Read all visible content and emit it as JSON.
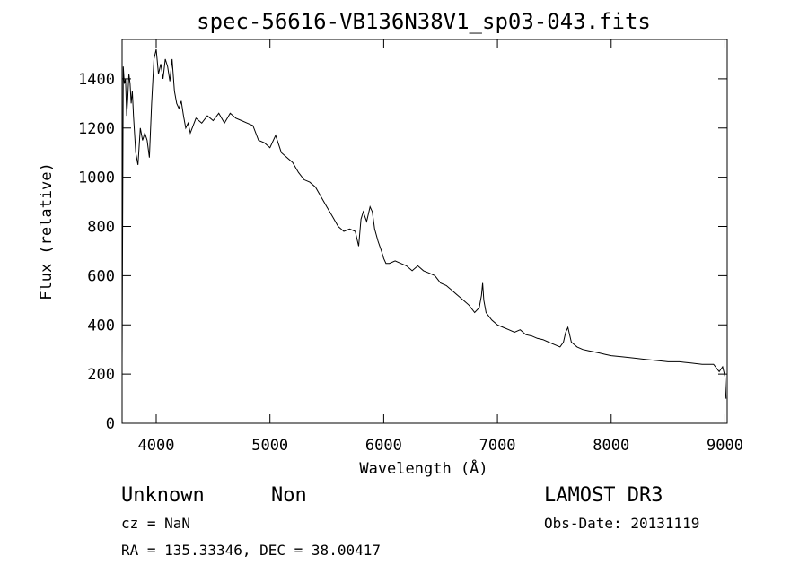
{
  "chart_data": {
    "type": "line",
    "title": "spec-56616-VB136N38V1_sp03-043.fits",
    "xlabel": "Wavelength (Å)",
    "ylabel": "Flux (relative)",
    "xlim": [
      3700,
      9020
    ],
    "ylim": [
      0,
      1560
    ],
    "xticks": [
      4000,
      5000,
      6000,
      7000,
      8000,
      9000
    ],
    "yticks": [
      0,
      200,
      400,
      600,
      800,
      1000,
      1200,
      1400
    ],
    "grid": false,
    "series": [
      {
        "x": [
          3700,
          3710,
          3720,
          3730,
          3740,
          3750,
          3760,
          3770,
          3780,
          3790,
          3800,
          3820,
          3840,
          3860,
          3880,
          3900,
          3920,
          3940,
          3960,
          3980,
          4000,
          4020,
          4040,
          4060,
          4080,
          4100,
          4120,
          4140,
          4160,
          4180,
          4200,
          4220,
          4240,
          4260,
          4280,
          4300,
          4350,
          4400,
          4450,
          4500,
          4550,
          4600,
          4650,
          4700,
          4750,
          4800,
          4850,
          4900,
          4950,
          5000,
          5050,
          5100,
          5150,
          5200,
          5250,
          5300,
          5350,
          5400,
          5450,
          5500,
          5550,
          5600,
          5650,
          5700,
          5750,
          5780,
          5800,
          5820,
          5850,
          5880,
          5900,
          5920,
          5950,
          5980,
          6000,
          6020,
          6050,
          6100,
          6150,
          6200,
          6250,
          6300,
          6350,
          6400,
          6450,
          6500,
          6550,
          6600,
          6650,
          6700,
          6750,
          6800,
          6840,
          6860,
          6870,
          6880,
          6900,
          6950,
          7000,
          7050,
          7100,
          7150,
          7200,
          7250,
          7300,
          7350,
          7400,
          7450,
          7500,
          7550,
          7580,
          7600,
          7620,
          7650,
          7700,
          7750,
          7800,
          7850,
          7900,
          7950,
          8000,
          8100,
          8200,
          8300,
          8400,
          8500,
          8600,
          8700,
          8800,
          8900,
          8950,
          8980,
          9000,
          9010
        ],
        "y": [
          250,
          1450,
          1380,
          1400,
          1250,
          1320,
          1420,
          1380,
          1300,
          1350,
          1250,
          1100,
          1050,
          1200,
          1150,
          1180,
          1150,
          1080,
          1300,
          1480,
          1520,
          1420,
          1460,
          1400,
          1480,
          1450,
          1390,
          1480,
          1350,
          1300,
          1280,
          1310,
          1250,
          1200,
          1220,
          1180,
          1240,
          1220,
          1250,
          1230,
          1260,
          1220,
          1260,
          1240,
          1230,
          1220,
          1210,
          1150,
          1140,
          1120,
          1170,
          1100,
          1080,
          1060,
          1020,
          990,
          980,
          960,
          920,
          880,
          840,
          800,
          780,
          790,
          780,
          720,
          830,
          860,
          820,
          880,
          860,
          790,
          740,
          700,
          670,
          650,
          650,
          660,
          650,
          640,
          620,
          640,
          620,
          610,
          600,
          570,
          560,
          540,
          520,
          500,
          480,
          450,
          470,
          520,
          570,
          500,
          450,
          420,
          400,
          390,
          380,
          370,
          380,
          360,
          355,
          345,
          340,
          330,
          320,
          310,
          330,
          370,
          390,
          330,
          310,
          300,
          295,
          290,
          285,
          280,
          275,
          270,
          265,
          260,
          255,
          250,
          250,
          245,
          240,
          240,
          210,
          230,
          190,
          100
        ]
      }
    ]
  },
  "info": {
    "object_class": "Unknown",
    "object_subclass": "Non",
    "survey": "LAMOST DR3",
    "cz": "cz = NaN",
    "obs_date": "Obs-Date: 20131119",
    "coords": "RA = 135.33346, DEC =  38.00417"
  }
}
